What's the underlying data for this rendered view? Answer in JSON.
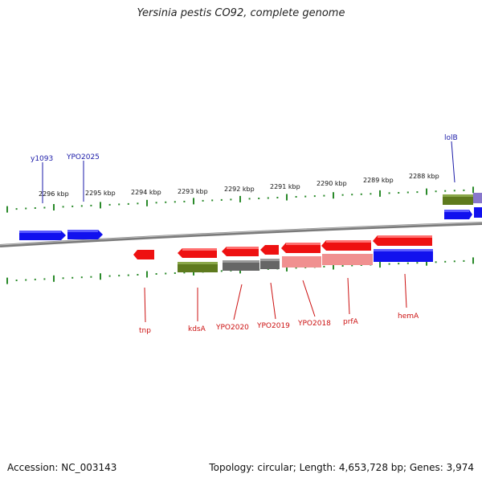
{
  "title": "Yersinia pestis CO92, complete genome",
  "footer": {
    "accession": "Accession: NC_003143",
    "summary": "Topology: circular; Length: 4,653,728 bp; Genes: 3,974"
  },
  "scale_labels": [
    "2296 kbp",
    "2295 kbp",
    "2294 kbp",
    "2293 kbp",
    "2292 kbp",
    "2291 kbp",
    "2290 kbp",
    "2289 kbp",
    "2288 kbp"
  ],
  "gene_labels_top": [
    "y1093",
    "YPO2025",
    "lolB"
  ],
  "gene_labels_bottom": [
    "tnp",
    "kdsA",
    "YPO2020",
    "YPO2019",
    "YPO2018",
    "prfA",
    "hemA"
  ],
  "colors": {
    "red": "#ee1111",
    "blue": "#1111ee",
    "olive": "#5e7a1e",
    "gray": "#666666",
    "pink": "#f09090",
    "purple": "#8877cc",
    "backbone": "#888888",
    "tick": "#2a8a2a"
  }
}
